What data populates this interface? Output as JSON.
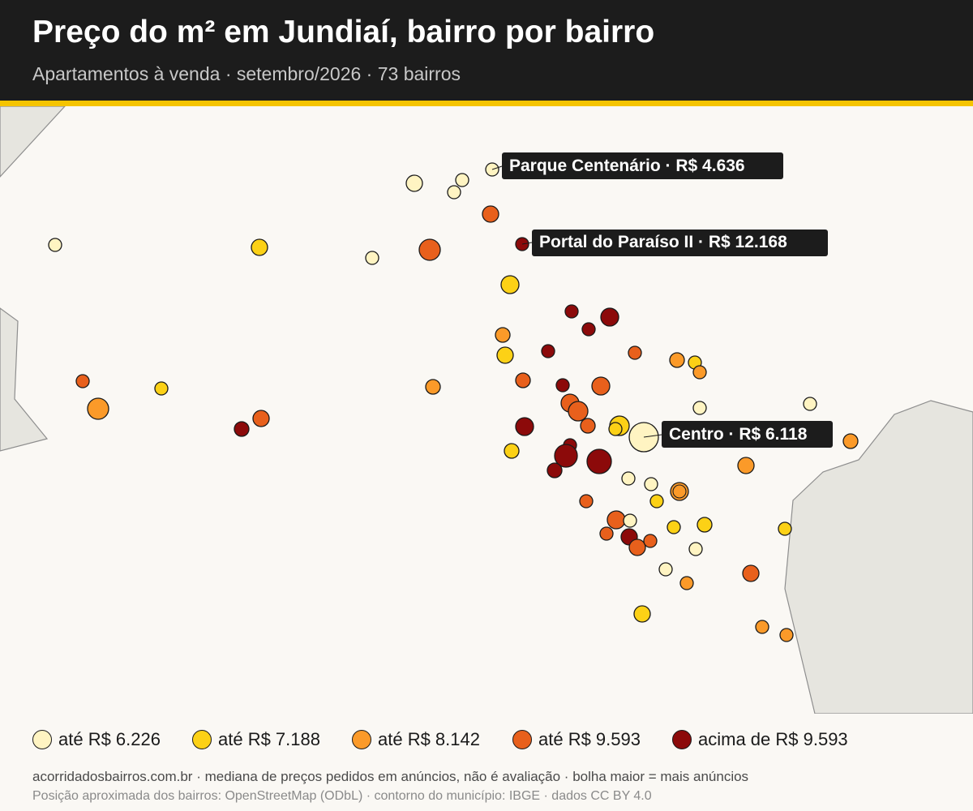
{
  "header": {
    "title": "Preço do m² em Jundiaí, bairro por bairro",
    "subtitle": "Apartamentos à venda · setembro/2026 · 73 bairros"
  },
  "colors": {
    "header_bg": "#1c1c1c",
    "accent": "#f5c400",
    "background": "#faf8f4",
    "neighbor_land": "#e6e5df",
    "label_bg": "#1c1c1c",
    "classes": [
      "#fff4c2",
      "#fcd116",
      "#fb9a29",
      "#e8601c",
      "#8c0a0a"
    ]
  },
  "legend": [
    {
      "label": "até R$ 6.226",
      "color": "#fff4c2"
    },
    {
      "label": "até R$ 7.188",
      "color": "#fcd116"
    },
    {
      "label": "até R$ 8.142",
      "color": "#fb9a29"
    },
    {
      "label": "até R$ 9.593",
      "color": "#e8601c"
    },
    {
      "label": "acima de R$ 9.593",
      "color": "#8c0a0a"
    }
  ],
  "callouts": [
    {
      "text": "Parque Centenário · R$ 4.636",
      "target": "Parque Centenário"
    },
    {
      "text": "Portal do Paraíso II · R$ 12.168",
      "target": "Portal do Paraíso II"
    },
    {
      "text": "Centro · R$ 6.118",
      "target": "Centro"
    }
  ],
  "footer": {
    "line1": "acorridadosbairros.com.br · mediana de preços pedidos em anúncios, não é avaliação · bolha maior = mais anúncios",
    "line2": "Posição aproximada dos bairros: OpenStreetMap (ODbL) · contorno do município: IBGE · dados CC BY 4.0"
  }
}
